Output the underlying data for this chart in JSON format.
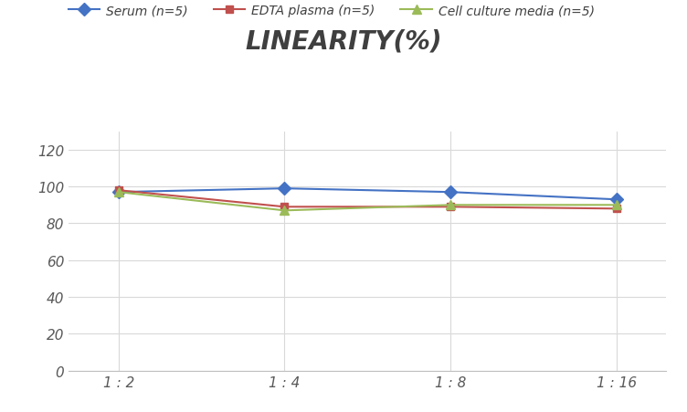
{
  "title": "LINEARITY(%)",
  "x_labels": [
    "1 : 2",
    "1 : 4",
    "1 : 8",
    "1 : 16"
  ],
  "series": [
    {
      "label": "Serum (n=5)",
      "values": [
        97,
        99,
        97,
        93
      ],
      "color": "#4472C4",
      "marker": "D",
      "marker_color": "#4472C4",
      "linewidth": 1.5,
      "markersize": 7
    },
    {
      "label": "EDTA plasma (n=5)",
      "values": [
        98,
        89,
        89,
        88
      ],
      "color": "#C0504D",
      "marker": "s",
      "marker_color": "#C0504D",
      "linewidth": 1.5,
      "markersize": 6
    },
    {
      "label": "Cell culture media (n=5)",
      "values": [
        97,
        87,
        90,
        90
      ],
      "color": "#9BBB59",
      "marker": "^",
      "marker_color": "#9BBB59",
      "linewidth": 1.5,
      "markersize": 7
    }
  ],
  "ylim": [
    0,
    130
  ],
  "yticks": [
    0,
    20,
    40,
    60,
    80,
    100,
    120
  ],
  "background_color": "#FFFFFF",
  "grid_color": "#D9D9D9",
  "title_fontsize": 20,
  "legend_fontsize": 10,
  "tick_fontsize": 11
}
